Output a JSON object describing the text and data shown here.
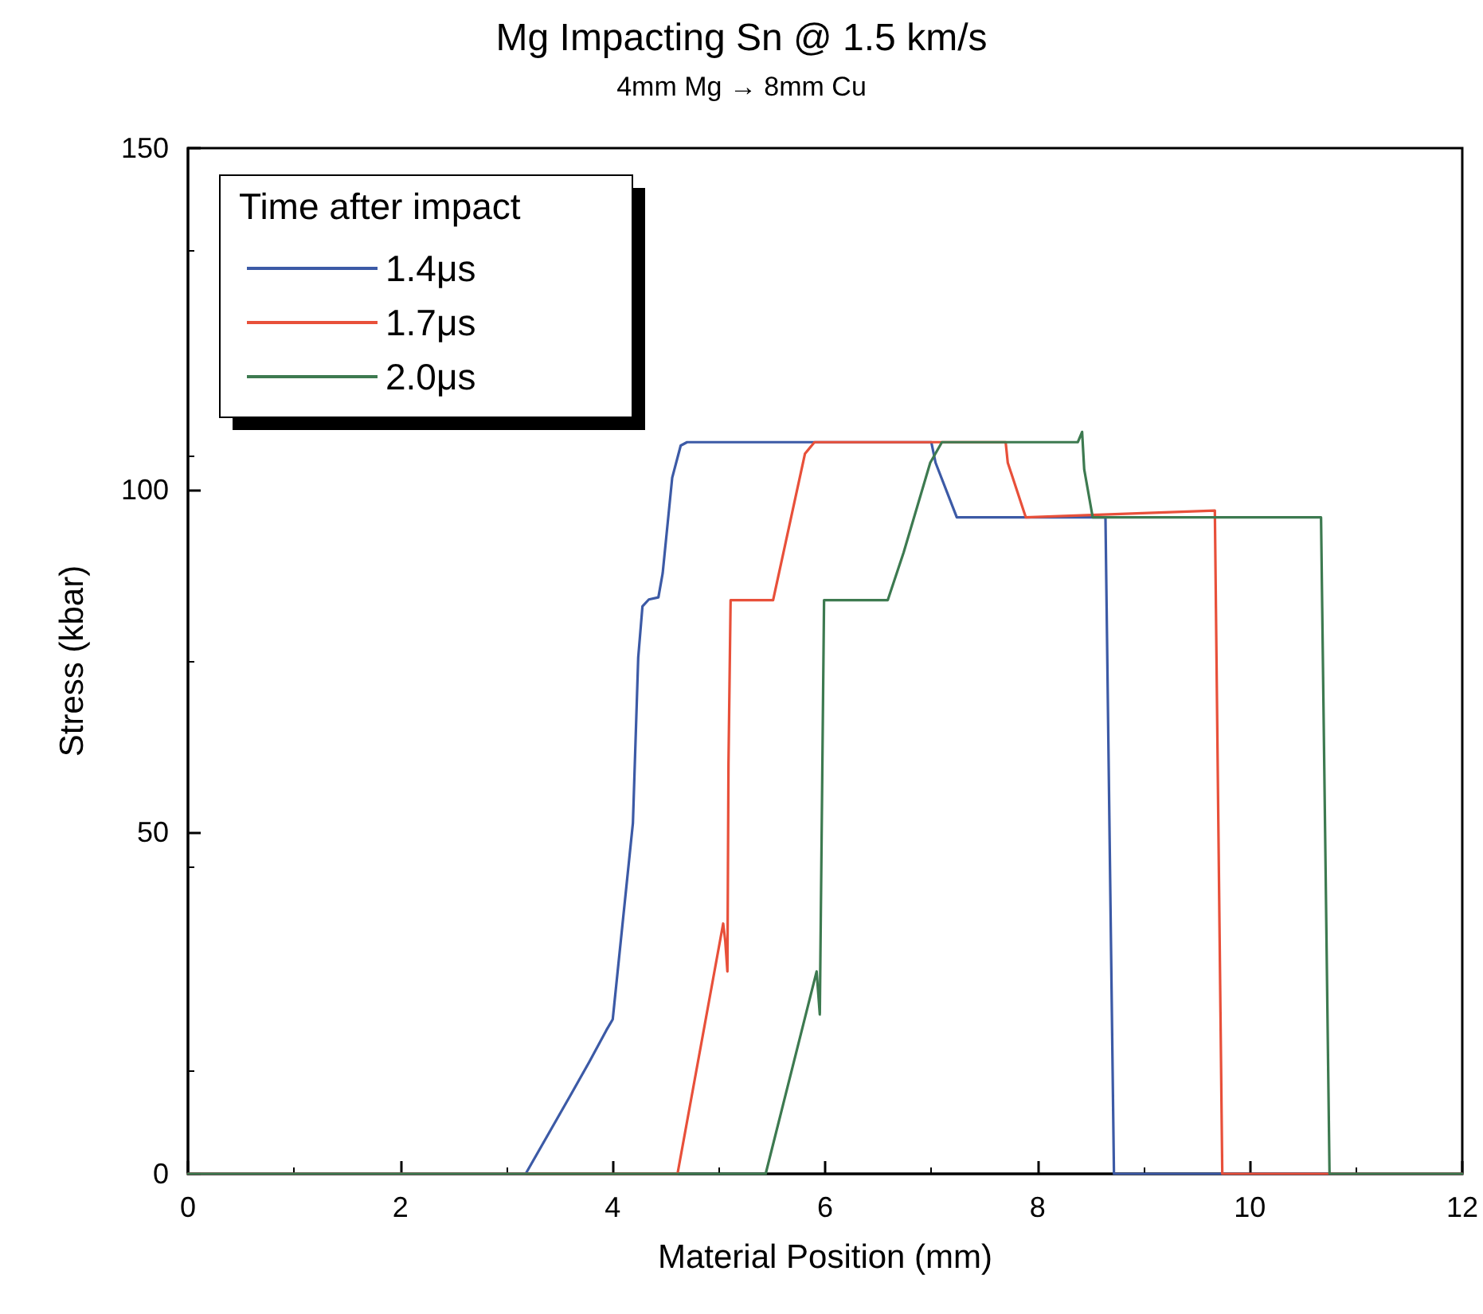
{
  "chart_data": {
    "type": "line",
    "title": "Mg Impacting Sn @ 1.5 km/s",
    "subtitle": "4mm Mg → 8mm Cu",
    "xlabel": "Material Position (mm)",
    "ylabel": "Stress (kbar)",
    "legend_title": "Time after impact",
    "xlim": [
      0,
      12
    ],
    "xticks": [
      0,
      2,
      4,
      6,
      8,
      10,
      12
    ],
    "ylim": [
      0,
      150
    ],
    "yticks": [
      0,
      50,
      100,
      150
    ],
    "grid": false,
    "legend": "top left",
    "marker": "none",
    "line_style": "solid",
    "series": [
      {
        "name": "1.4μs",
        "color": "#3c5aa6",
        "x": [
          0,
          3.18,
          3.61,
          3.78,
          3.94,
          4.0,
          4.19,
          4.24,
          4.28,
          4.34,
          4.43,
          4.47,
          4.56,
          4.64,
          4.7,
          7.0,
          7.04,
          7.24,
          8.64,
          8.72,
          12
        ],
        "values": [
          0,
          0,
          11.7,
          16.4,
          21,
          22.6,
          51.3,
          75.5,
          83,
          84,
          84.3,
          87.8,
          101.8,
          106.5,
          107,
          107,
          104,
          96,
          96,
          0,
          0
        ]
      },
      {
        "name": "1.7μs",
        "color": "#e8503a",
        "x": [
          0,
          4.61,
          5.04,
          5.06,
          5.08,
          5.09,
          5.11,
          5.51,
          5.81,
          5.9,
          7.7,
          7.72,
          7.89,
          9.67,
          9.74,
          12
        ],
        "values": [
          0,
          0,
          36.6,
          34,
          29.6,
          60,
          83.9,
          83.9,
          105.3,
          107,
          107,
          104,
          96,
          97,
          0,
          0
        ]
      },
      {
        "name": "2.0μs",
        "color": "#3d7a50",
        "x": [
          0,
          5.44,
          5.92,
          5.95,
          5.99,
          6.59,
          6.74,
          6.99,
          7.1,
          8.38,
          8.42,
          8.44,
          8.52,
          10.67,
          10.75,
          12
        ],
        "values": [
          0,
          0,
          29.6,
          23.3,
          83.9,
          83.9,
          90.9,
          104,
          107,
          107,
          108.5,
          103,
          96,
          96,
          0,
          0
        ]
      }
    ]
  }
}
